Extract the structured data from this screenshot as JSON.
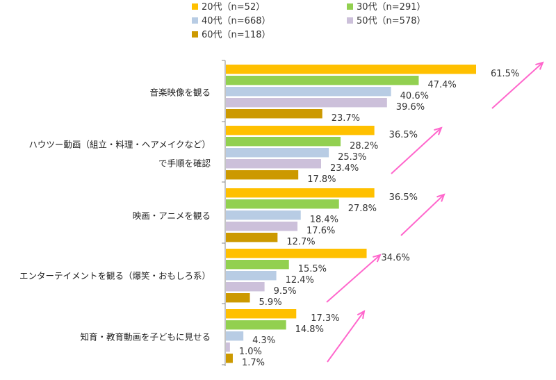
{
  "chart_data": {
    "type": "bar",
    "orientation": "horizontal",
    "categories": [
      [
        "音楽映像を観る"
      ],
      [
        "ハウツー動画（組立・料理・ヘアメイクなど）",
        "で手順を確認"
      ],
      [
        "映画・アニメを観る"
      ],
      [
        "エンターテイメントを観る（爆笑・おもしろ系）"
      ],
      [
        "知育・教育動画を子どもに見せる"
      ]
    ],
    "series": [
      {
        "name": "20代（n=52）",
        "color": "#FFC000",
        "values": [
          61.5,
          36.5,
          36.5,
          34.6,
          17.3
        ]
      },
      {
        "name": "30代（n=291）",
        "color": "#92D050",
        "values": [
          47.4,
          28.2,
          27.8,
          15.5,
          14.8
        ]
      },
      {
        "name": "40代（n=668）",
        "color": "#B8CCE4",
        "values": [
          40.6,
          25.3,
          18.4,
          12.4,
          4.3
        ]
      },
      {
        "name": "50代（n=578）",
        "color": "#CCC0DA",
        "values": [
          39.6,
          23.4,
          17.6,
          9.5,
          1.0
        ]
      },
      {
        "name": "60代（n=118）",
        "color": "#CC9900",
        "values": [
          23.7,
          17.8,
          12.7,
          5.9,
          1.7
        ]
      }
    ],
    "value_suffix": "%",
    "xlim": [
      0,
      65
    ],
    "legend_position": "top",
    "grid": false,
    "annotations": {
      "arrows": "pink upward arrows beside each category group",
      "arrow_color": "#FF66CC"
    }
  }
}
